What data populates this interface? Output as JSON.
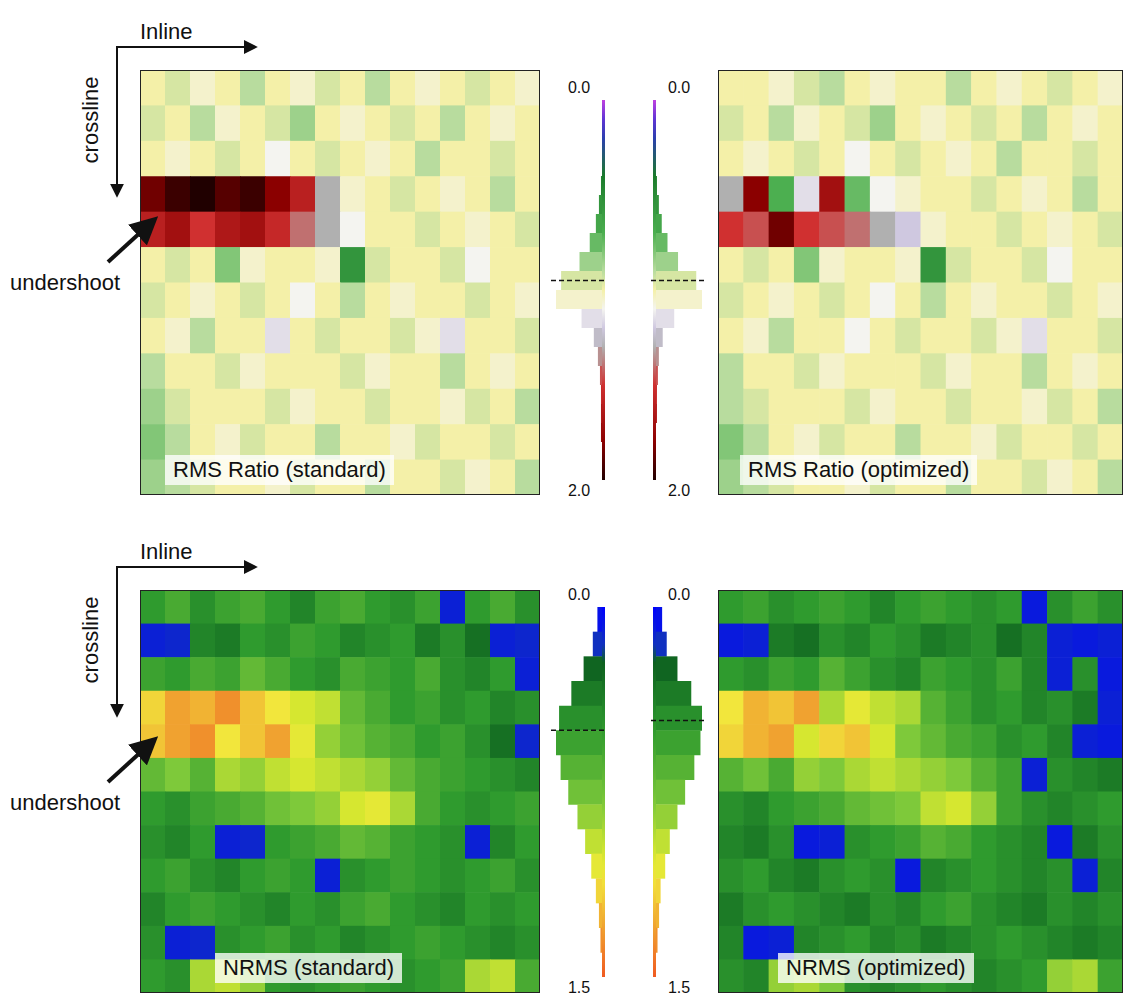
{
  "chart_data": [
    {
      "type": "heatmap",
      "title": "RMS Ratio (standard)",
      "x_label": "Inline",
      "y_label": "crossline",
      "annotation": "undershoot",
      "tick_labels": false,
      "color_range": [
        0,
        2
      ],
      "cells": [
        [
          1.0,
          0.95,
          1.05,
          1.0,
          0.9,
          1.0,
          1.05,
          0.95,
          1.0,
          0.9,
          1.0,
          1.05,
          1.0,
          0.95,
          1.0,
          1.05
        ],
        [
          0.95,
          1.0,
          0.9,
          1.05,
          1.0,
          0.95,
          0.85,
          1.0,
          1.05,
          1.0,
          0.95,
          1.0,
          0.9,
          1.0,
          1.05,
          1.0
        ],
        [
          1.0,
          1.05,
          1.0,
          0.95,
          1.0,
          1.1,
          1.0,
          0.95,
          1.0,
          1.05,
          1.0,
          0.9,
          1.0,
          1.0,
          0.95,
          1.0
        ],
        [
          1.85,
          1.95,
          2.0,
          1.9,
          1.95,
          1.8,
          1.6,
          1.3,
          1.05,
          1.0,
          0.95,
          1.0,
          1.05,
          1.0,
          0.9,
          1.0
        ],
        [
          1.6,
          1.7,
          1.5,
          1.65,
          1.7,
          1.55,
          1.4,
          1.3,
          1.1,
          1.0,
          1.0,
          0.95,
          1.0,
          1.05,
          1.0,
          0.95
        ],
        [
          1.0,
          0.95,
          1.0,
          0.8,
          1.05,
          1.0,
          1.0,
          1.05,
          0.55,
          0.95,
          1.0,
          1.0,
          0.95,
          1.1,
          1.0,
          1.0
        ],
        [
          0.95,
          1.0,
          1.05,
          1.0,
          0.95,
          1.0,
          1.1,
          1.0,
          0.9,
          1.0,
          1.05,
          1.0,
          1.0,
          0.95,
          1.0,
          1.05
        ],
        [
          1.0,
          1.05,
          0.9,
          1.0,
          1.0,
          1.15,
          1.0,
          0.95,
          1.0,
          1.0,
          0.95,
          1.05,
          1.15,
          1.0,
          1.0,
          0.95
        ],
        [
          0.9,
          1.0,
          1.0,
          0.95,
          1.05,
          1.0,
          1.0,
          1.0,
          0.95,
          1.05,
          1.0,
          1.0,
          0.9,
          1.0,
          1.05,
          1.0
        ],
        [
          0.85,
          0.95,
          1.0,
          1.0,
          1.0,
          0.95,
          1.05,
          1.0,
          1.0,
          0.95,
          1.0,
          1.0,
          1.05,
          0.95,
          1.0,
          0.9
        ],
        [
          0.8,
          0.9,
          1.0,
          1.05,
          0.95,
          1.0,
          1.0,
          0.9,
          1.0,
          1.0,
          1.05,
          0.95,
          1.0,
          1.0,
          0.95,
          1.0
        ],
        [
          0.85,
          0.9,
          0.95,
          1.0,
          1.0,
          1.05,
          0.95,
          1.0,
          1.0,
          0.9,
          1.0,
          1.0,
          0.95,
          1.05,
          1.0,
          0.9
        ]
      ]
    },
    {
      "type": "histogram",
      "orientation": "horizontal",
      "bins": [
        0.0,
        0.1,
        0.2,
        0.3,
        0.4,
        0.5,
        0.6,
        0.7,
        0.8,
        0.9,
        1.0,
        1.1,
        1.2,
        1.3,
        1.4,
        1.5,
        1.6,
        1.7,
        1.8,
        1.9,
        2.0
      ],
      "counts": [
        0,
        0,
        0,
        0,
        1,
        3,
        6,
        12,
        22,
        40,
        45,
        20,
        8,
        4,
        2,
        1,
        1,
        1,
        0,
        0
      ],
      "ylim": [
        0,
        2
      ],
      "yticks": [
        {
          "value": 0,
          "label": "0.0"
        },
        {
          "value": 2,
          "label": "2.0"
        }
      ],
      "reference_line": 0.95
    },
    {
      "type": "histogram",
      "orientation": "horizontal",
      "bins": [
        0.0,
        0.1,
        0.2,
        0.3,
        0.4,
        0.5,
        0.6,
        0.7,
        0.8,
        0.9,
        1.0,
        1.1,
        1.2,
        1.3,
        1.4,
        1.5,
        1.6,
        1.7,
        1.8,
        1.9,
        2.0
      ],
      "counts": [
        0,
        0,
        0,
        0,
        1,
        3,
        6,
        12,
        23,
        42,
        48,
        19,
        7,
        3,
        2,
        1,
        1,
        0,
        0,
        0
      ],
      "ylim": [
        0,
        2
      ],
      "yticks": [
        {
          "value": 0,
          "label": "0.0"
        },
        {
          "value": 2,
          "label": "2.0"
        }
      ],
      "reference_line": 0.95
    },
    {
      "type": "heatmap",
      "title": "RMS Ratio (optimized)",
      "tick_labels": false,
      "color_range": [
        0,
        2
      ],
      "cells": [
        [
          1.0,
          1.0,
          1.05,
          0.95,
          0.9,
          1.0,
          1.05,
          1.0,
          1.0,
          0.9,
          1.0,
          1.05,
          1.0,
          0.95,
          1.0,
          1.05
        ],
        [
          0.95,
          1.0,
          0.9,
          1.05,
          1.0,
          0.95,
          0.85,
          1.0,
          1.05,
          1.0,
          0.95,
          1.0,
          0.9,
          1.0,
          1.05,
          1.0
        ],
        [
          1.0,
          1.05,
          1.0,
          0.95,
          1.0,
          1.1,
          1.0,
          0.95,
          1.0,
          1.05,
          1.0,
          0.9,
          1.0,
          1.0,
          0.95,
          1.0
        ],
        [
          1.3,
          1.8,
          0.7,
          1.15,
          1.7,
          0.75,
          1.1,
          1.05,
          1.0,
          1.0,
          0.95,
          1.0,
          1.05,
          1.0,
          0.9,
          1.0
        ],
        [
          1.5,
          1.45,
          1.85,
          1.5,
          1.45,
          1.4,
          1.3,
          1.2,
          1.05,
          1.0,
          1.0,
          0.95,
          1.0,
          1.05,
          1.0,
          0.95
        ],
        [
          1.0,
          0.95,
          1.0,
          0.8,
          1.05,
          1.0,
          1.0,
          1.05,
          0.55,
          0.95,
          1.0,
          1.0,
          0.95,
          1.1,
          1.0,
          1.0
        ],
        [
          0.95,
          1.0,
          1.05,
          1.0,
          0.95,
          1.0,
          1.1,
          1.0,
          0.9,
          1.0,
          1.05,
          1.0,
          1.0,
          0.95,
          1.0,
          1.05
        ],
        [
          1.0,
          1.05,
          0.9,
          1.0,
          1.0,
          1.1,
          1.0,
          0.95,
          1.0,
          1.0,
          0.95,
          1.05,
          1.15,
          1.0,
          1.0,
          0.95
        ],
        [
          0.9,
          1.0,
          1.0,
          0.95,
          1.05,
          1.0,
          1.0,
          1.0,
          0.95,
          1.05,
          1.0,
          1.0,
          0.9,
          1.0,
          1.05,
          1.0
        ],
        [
          0.9,
          0.95,
          1.0,
          1.0,
          1.0,
          0.95,
          1.05,
          1.0,
          1.0,
          0.95,
          1.0,
          1.0,
          1.05,
          0.95,
          1.0,
          0.9
        ],
        [
          0.8,
          0.9,
          1.0,
          1.05,
          0.95,
          1.0,
          1.0,
          0.9,
          1.0,
          1.0,
          1.05,
          0.95,
          1.0,
          1.0,
          0.95,
          1.0
        ],
        [
          0.85,
          0.9,
          0.95,
          1.0,
          1.0,
          1.05,
          0.95,
          1.0,
          1.0,
          0.9,
          1.0,
          1.0,
          0.95,
          1.05,
          1.0,
          0.9
        ]
      ]
    },
    {
      "type": "heatmap",
      "title": "NRMS (standard)",
      "x_label": "Inline",
      "y_label": "crossline",
      "annotation": "undershoot",
      "tick_labels": false,
      "color_range": [
        0,
        1.5
      ],
      "cells": [
        [
          0.5,
          0.6,
          0.45,
          0.55,
          0.6,
          0.5,
          0.4,
          0.55,
          0.6,
          0.5,
          0.45,
          0.55,
          0.1,
          0.5,
          0.6,
          0.45
        ],
        [
          0.1,
          0.12,
          0.4,
          0.35,
          0.5,
          0.45,
          0.55,
          0.5,
          0.4,
          0.45,
          0.5,
          0.35,
          0.45,
          0.3,
          0.1,
          0.12
        ],
        [
          0.55,
          0.5,
          0.6,
          0.55,
          0.7,
          0.6,
          0.5,
          0.45,
          0.6,
          0.55,
          0.5,
          0.6,
          0.45,
          0.4,
          0.5,
          0.1
        ],
        [
          1.15,
          1.3,
          1.25,
          1.35,
          1.2,
          1.1,
          1.0,
          0.95,
          0.7,
          0.6,
          0.5,
          0.55,
          0.45,
          0.5,
          0.4,
          0.45
        ],
        [
          1.2,
          1.3,
          1.35,
          1.1,
          1.2,
          1.3,
          1.05,
          0.85,
          0.75,
          0.65,
          0.6,
          0.5,
          0.55,
          0.45,
          0.3,
          0.12
        ],
        [
          0.7,
          0.8,
          0.65,
          0.9,
          0.85,
          0.95,
          1.0,
          0.95,
          0.9,
          0.85,
          0.7,
          0.6,
          0.55,
          0.5,
          0.45,
          0.4
        ],
        [
          0.5,
          0.45,
          0.55,
          0.6,
          0.65,
          0.75,
          0.8,
          0.85,
          1.0,
          1.05,
          0.9,
          0.6,
          0.5,
          0.45,
          0.5,
          0.55
        ],
        [
          0.45,
          0.4,
          0.5,
          0.1,
          0.12,
          0.5,
          0.55,
          0.6,
          0.7,
          0.65,
          0.55,
          0.5,
          0.45,
          0.1,
          0.4,
          0.5
        ],
        [
          0.5,
          0.55,
          0.45,
          0.4,
          0.5,
          0.55,
          0.5,
          0.1,
          0.45,
          0.5,
          0.55,
          0.5,
          0.45,
          0.5,
          0.55,
          0.45
        ],
        [
          0.4,
          0.5,
          0.55,
          0.5,
          0.45,
          0.4,
          0.5,
          0.45,
          0.55,
          0.6,
          0.5,
          0.45,
          0.4,
          0.5,
          0.45,
          0.5
        ],
        [
          0.45,
          0.1,
          0.12,
          0.45,
          0.5,
          0.55,
          0.45,
          0.5,
          0.4,
          0.45,
          0.5,
          0.55,
          0.5,
          0.45,
          0.4,
          0.45
        ],
        [
          0.5,
          0.45,
          0.9,
          0.95,
          0.85,
          0.5,
          0.45,
          0.5,
          0.55,
          0.5,
          0.45,
          0.5,
          0.55,
          0.9,
          0.95,
          0.6
        ]
      ]
    },
    {
      "type": "histogram",
      "orientation": "horizontal",
      "bins": [
        0.0,
        0.1,
        0.2,
        0.3,
        0.4,
        0.5,
        0.6,
        0.7,
        0.8,
        0.9,
        1.0,
        1.1,
        1.2,
        1.3,
        1.4,
        1.5
      ],
      "counts": [
        3,
        6,
        12,
        20,
        28,
        30,
        27,
        22,
        16,
        11,
        7,
        4,
        2,
        1,
        0
      ],
      "ylim": [
        0,
        1.5
      ],
      "yticks": [
        {
          "value": 0,
          "label": "0.0"
        },
        {
          "value": 1.5,
          "label": "1.5"
        }
      ],
      "reference_line": 0.5
    },
    {
      "type": "histogram",
      "orientation": "horizontal",
      "bins": [
        0.0,
        0.1,
        0.2,
        0.3,
        0.4,
        0.5,
        0.6,
        0.7,
        0.8,
        0.9,
        1.0,
        1.1,
        1.2,
        1.3,
        1.4,
        1.5
      ],
      "counts": [
        4,
        7,
        14,
        23,
        30,
        29,
        25,
        19,
        14,
        9,
        6,
        3,
        2,
        1,
        0
      ],
      "ylim": [
        0,
        1.5
      ],
      "yticks": [
        {
          "value": 0,
          "label": "0.0"
        },
        {
          "value": 1.5,
          "label": "1.5"
        }
      ],
      "reference_line": 0.46
    },
    {
      "type": "heatmap",
      "title": "NRMS (optimized)",
      "tick_labels": false,
      "color_range": [
        0,
        1.5
      ],
      "cells": [
        [
          0.5,
          0.55,
          0.45,
          0.5,
          0.55,
          0.5,
          0.4,
          0.5,
          0.55,
          0.5,
          0.45,
          0.5,
          0.08,
          0.45,
          0.55,
          0.45
        ],
        [
          0.08,
          0.1,
          0.35,
          0.3,
          0.45,
          0.4,
          0.5,
          0.45,
          0.35,
          0.4,
          0.45,
          0.3,
          0.4,
          0.1,
          0.08,
          0.1
        ],
        [
          0.5,
          0.45,
          0.55,
          0.5,
          0.65,
          0.55,
          0.45,
          0.4,
          0.55,
          0.5,
          0.45,
          0.55,
          0.4,
          0.1,
          0.45,
          0.08
        ],
        [
          1.1,
          1.25,
          1.2,
          1.3,
          0.9,
          1.05,
          0.95,
          0.9,
          0.65,
          0.55,
          0.45,
          0.5,
          0.4,
          0.45,
          0.35,
          0.1
        ],
        [
          1.15,
          1.25,
          1.3,
          1.0,
          1.15,
          1.2,
          1.0,
          0.8,
          0.7,
          0.6,
          0.55,
          0.45,
          0.5,
          0.4,
          0.1,
          0.08
        ],
        [
          0.65,
          0.75,
          0.6,
          0.85,
          0.8,
          0.9,
          0.95,
          0.9,
          0.85,
          0.8,
          0.65,
          0.55,
          0.1,
          0.45,
          0.4,
          0.35
        ],
        [
          0.45,
          0.4,
          0.5,
          0.55,
          0.6,
          0.7,
          0.75,
          0.8,
          0.95,
          1.0,
          0.85,
          0.55,
          0.45,
          0.4,
          0.45,
          0.5
        ],
        [
          0.4,
          0.35,
          0.45,
          0.08,
          0.1,
          0.45,
          0.5,
          0.55,
          0.65,
          0.6,
          0.5,
          0.45,
          0.4,
          0.08,
          0.35,
          0.45
        ],
        [
          0.45,
          0.5,
          0.4,
          0.35,
          0.45,
          0.5,
          0.45,
          0.08,
          0.4,
          0.45,
          0.5,
          0.45,
          0.4,
          0.45,
          0.1,
          0.4
        ],
        [
          0.35,
          0.45,
          0.5,
          0.45,
          0.4,
          0.35,
          0.45,
          0.4,
          0.5,
          0.55,
          0.45,
          0.4,
          0.35,
          0.45,
          0.4,
          0.45
        ],
        [
          0.4,
          0.08,
          0.1,
          0.4,
          0.45,
          0.5,
          0.4,
          0.45,
          0.35,
          0.4,
          0.45,
          0.5,
          0.45,
          0.4,
          0.35,
          0.4
        ],
        [
          0.45,
          0.4,
          0.85,
          0.9,
          0.8,
          0.45,
          0.4,
          0.45,
          0.5,
          0.45,
          0.4,
          0.45,
          0.5,
          0.85,
          0.9,
          0.55
        ]
      ]
    }
  ]
}
